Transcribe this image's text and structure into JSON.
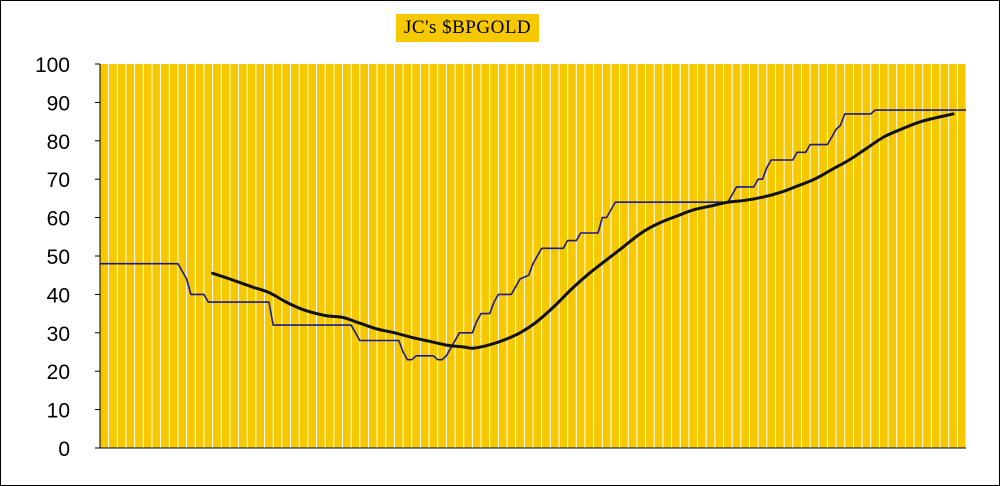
{
  "chart_data": {
    "type": "line",
    "title": "JC's $BPGOLD",
    "ylim": [
      0,
      100
    ],
    "yticks": [
      0,
      10,
      20,
      30,
      40,
      50,
      60,
      70,
      80,
      90,
      100
    ],
    "grid": "vertical",
    "plot_color": "#f5c800",
    "grid_color": "#ffffff",
    "n_points": 201,
    "series": [
      {
        "color": "#1b1b8c",
        "style": "step",
        "points": [
          [
            0,
            48
          ],
          [
            18,
            48
          ],
          [
            19,
            46
          ],
          [
            20,
            44
          ],
          [
            21,
            40
          ],
          [
            24,
            40
          ],
          [
            25,
            38
          ],
          [
            39,
            38
          ],
          [
            40,
            32
          ],
          [
            58,
            32
          ],
          [
            59,
            30
          ],
          [
            60,
            28
          ],
          [
            69,
            28
          ],
          [
            70,
            25
          ],
          [
            71,
            23
          ],
          [
            72,
            23
          ],
          [
            73,
            24
          ],
          [
            77,
            24
          ],
          [
            78,
            23
          ],
          [
            79,
            23
          ],
          [
            80,
            24
          ],
          [
            81,
            26
          ],
          [
            82,
            28
          ],
          [
            83,
            30
          ],
          [
            86,
            30
          ],
          [
            87,
            33
          ],
          [
            88,
            35
          ],
          [
            90,
            35
          ],
          [
            91,
            38
          ],
          [
            92,
            40
          ],
          [
            95,
            40
          ],
          [
            96,
            42
          ],
          [
            97,
            44
          ],
          [
            99,
            45
          ],
          [
            100,
            48
          ],
          [
            101,
            50
          ],
          [
            102,
            52
          ],
          [
            107,
            52
          ],
          [
            108,
            54
          ],
          [
            110,
            54
          ],
          [
            111,
            56
          ],
          [
            115,
            56
          ],
          [
            116,
            60
          ],
          [
            117,
            60
          ],
          [
            118,
            62
          ],
          [
            119,
            64
          ],
          [
            145,
            64
          ],
          [
            146,
            66
          ],
          [
            147,
            68
          ],
          [
            151,
            68
          ],
          [
            152,
            70
          ],
          [
            153,
            70
          ],
          [
            154,
            73
          ],
          [
            155,
            75
          ],
          [
            160,
            75
          ],
          [
            161,
            77
          ],
          [
            163,
            77
          ],
          [
            164,
            79
          ],
          [
            168,
            79
          ],
          [
            169,
            81
          ],
          [
            170,
            83
          ],
          [
            171,
            84
          ],
          [
            172,
            87
          ],
          [
            178,
            87
          ],
          [
            179,
            88
          ],
          [
            200,
            88
          ]
        ]
      },
      {
        "color": "#111111",
        "style": "smooth",
        "points": [
          [
            26,
            45.5
          ],
          [
            30,
            44
          ],
          [
            35,
            42
          ],
          [
            39,
            40.5
          ],
          [
            43,
            38
          ],
          [
            47,
            36
          ],
          [
            52,
            34.5
          ],
          [
            56,
            34
          ],
          [
            60,
            32.5
          ],
          [
            64,
            31
          ],
          [
            68,
            30
          ],
          [
            72,
            28.8
          ],
          [
            76,
            27.8
          ],
          [
            80,
            26.8
          ],
          [
            84,
            26.3
          ],
          [
            86,
            26
          ],
          [
            89,
            26.6
          ],
          [
            93,
            28
          ],
          [
            97,
            30
          ],
          [
            101,
            33
          ],
          [
            105,
            37
          ],
          [
            109,
            41.5
          ],
          [
            113,
            45.5
          ],
          [
            117,
            49
          ],
          [
            121,
            52.5
          ],
          [
            125,
            56
          ],
          [
            129,
            58.5
          ],
          [
            133,
            60.3
          ],
          [
            137,
            62
          ],
          [
            141,
            63
          ],
          [
            145,
            64
          ],
          [
            149,
            64.5
          ],
          [
            153,
            65.3
          ],
          [
            157,
            66.5
          ],
          [
            161,
            68.2
          ],
          [
            165,
            70
          ],
          [
            169,
            72.5
          ],
          [
            173,
            75
          ],
          [
            177,
            78
          ],
          [
            181,
            81
          ],
          [
            185,
            83
          ],
          [
            189,
            84.8
          ],
          [
            193,
            86
          ],
          [
            197,
            87
          ]
        ]
      }
    ]
  }
}
